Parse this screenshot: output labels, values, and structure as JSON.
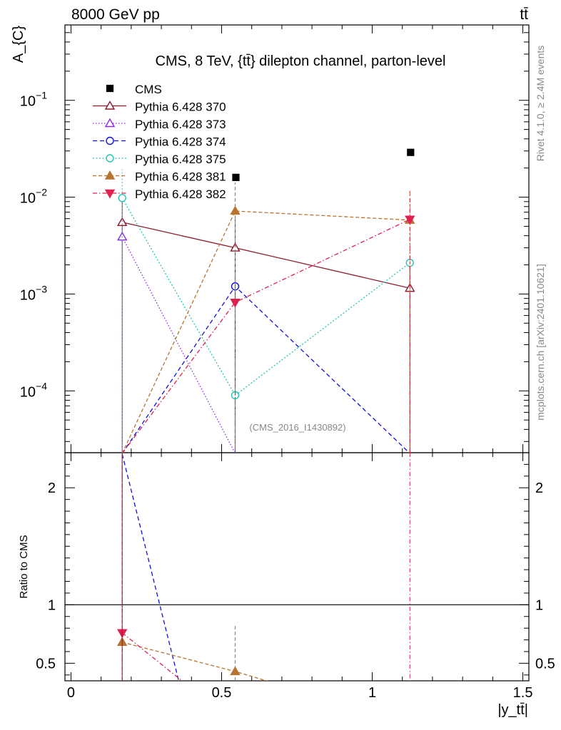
{
  "header": {
    "left": "8000 GeV pp",
    "right": "tt̄"
  },
  "side": {
    "rivet": "Rivet 4.1.0, ≥ 2.4M events",
    "mcplots": "mcplots.cern.ch [arXiv:2401.10621]"
  },
  "chart_data": {
    "type": "line",
    "title": "CMS, 8 TeV, {tt̄} dilepton channel, parton-level",
    "analysis_tag": "(CMS_2016_I1430892)",
    "ylabel": "A_{C}",
    "xlabel": "|y_tt̄|",
    "ratio_ylabel": "Ratio to CMS",
    "xlim": [
      -0.02,
      1.52
    ],
    "ylim": [
      2.3e-05,
      0.6
    ],
    "ratio_ylim": [
      0.35,
      2.3
    ],
    "x_ticks": [
      0,
      0.5,
      1,
      1.5
    ],
    "x_tick_labels": [
      "0",
      "0.5",
      "1",
      "1.5"
    ],
    "y_ticks": [
      0.0001,
      0.001,
      0.01,
      0.1
    ],
    "y_tick_labels": [
      {
        "base": "10",
        "exp": "−4"
      },
      {
        "base": "10",
        "exp": "−3"
      },
      {
        "base": "10",
        "exp": "−2"
      },
      {
        "base": "10",
        "exp": "−1"
      }
    ],
    "ratio_ticks": [
      0.5,
      1,
      2
    ],
    "ratio_tick_labels": [
      "0.5",
      "1",
      "2"
    ],
    "x": [
      0.17,
      0.545,
      1.125
    ],
    "data": {
      "name": "CMS",
      "values": [
        null,
        0.016,
        0.029
      ],
      "color": "#000000"
    },
    "series": [
      {
        "name": "Pythia 6.428 370",
        "color": "#8b1a2b",
        "dash": "",
        "marker": "tri-up-open",
        "values": [
          0.0055,
          0.003,
          0.00115
        ],
        "ratio": [
          null,
          null,
          null
        ]
      },
      {
        "name": "Pythia 6.428 373",
        "color": "#8a2be2",
        "dash": "1.5,2.5",
        "marker": "tri-up-open",
        "values": [
          0.0039,
          null,
          null
        ],
        "ratio": [
          null,
          null,
          null
        ]
      },
      {
        "name": "Pythia 6.428 374",
        "color": "#1010d8",
        "dash": "6,4",
        "marker": "circle-open",
        "values": [
          null,
          0.0012,
          null
        ],
        "ratio": [
          null,
          null,
          null
        ]
      },
      {
        "name": "Pythia 6.428 375",
        "color": "#20c8b4",
        "dash": "2,2.5",
        "marker": "circle-open",
        "values": [
          0.0098,
          9e-05,
          0.0021
        ],
        "ratio": [
          null,
          null,
          null
        ]
      },
      {
        "name": "Pythia 6.428 381",
        "color": "#b87333",
        "dash": "5,3",
        "marker": "tri-up-filled",
        "values": [
          null,
          0.0072,
          0.0058
        ],
        "ratio": [
          0.68,
          0.43,
          null
        ]
      },
      {
        "name": "Pythia 6.428 382",
        "color": "#e0204e",
        "dash": "6,3,1.5,3",
        "marker": "tri-down-filled",
        "values": [
          null,
          0.00082,
          0.0059
        ],
        "ratio": [
          0.76,
          null,
          null
        ]
      }
    ]
  }
}
